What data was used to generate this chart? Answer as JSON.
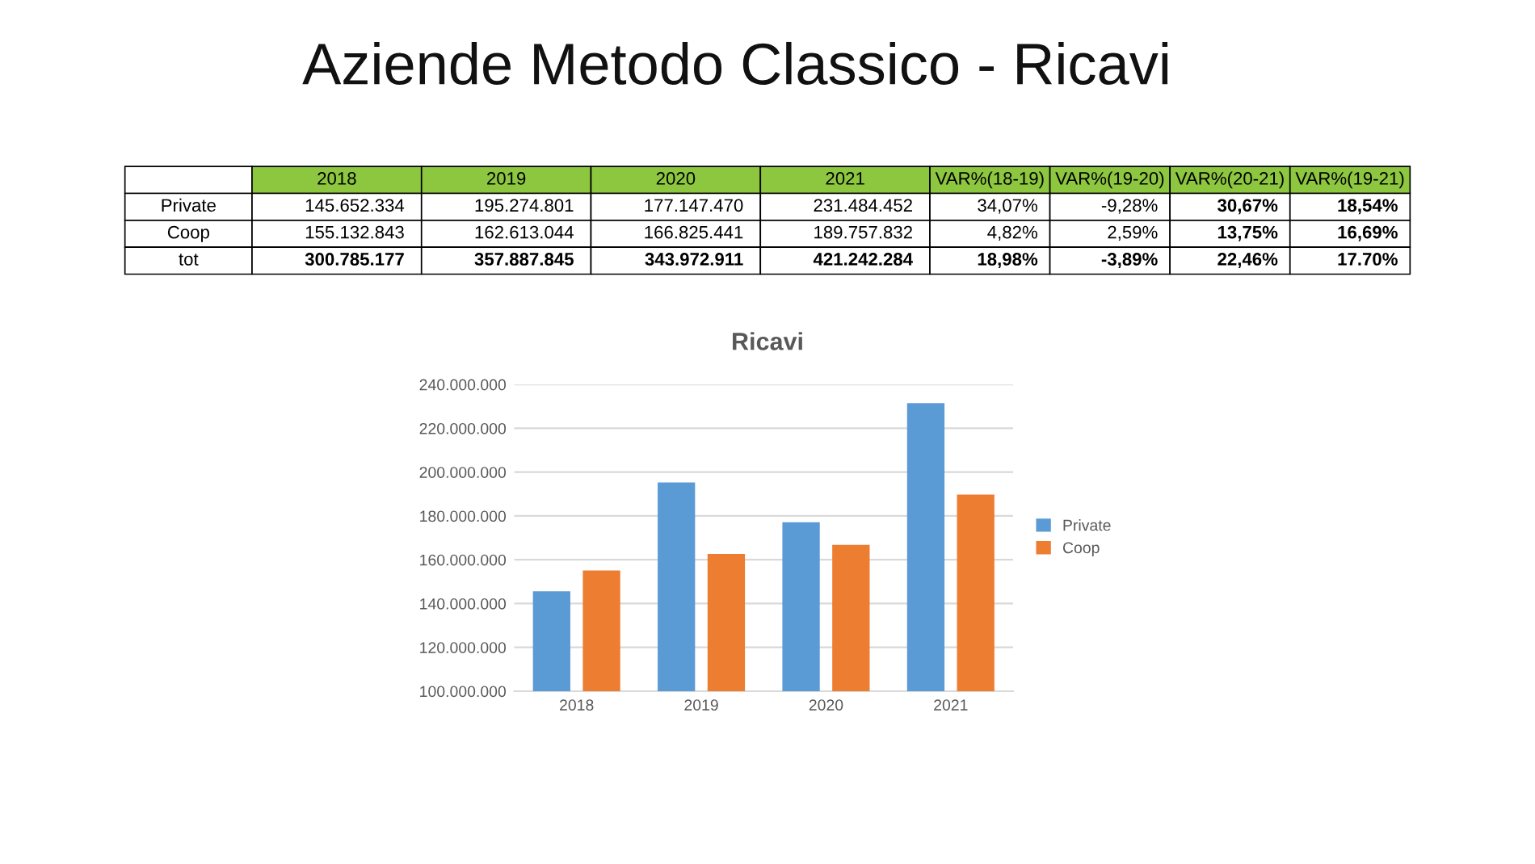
{
  "chart_data": {
    "type": "bar",
    "title": "Aziende Metodo Classico - Ricavi",
    "subtitle": "Ricavi",
    "categories": [
      "2018",
      "2019",
      "2020",
      "2021"
    ],
    "series": [
      {
        "name": "Private",
        "color": "#5b9bd5",
        "values": [
          145652334,
          195274801,
          177147470,
          231484452
        ]
      },
      {
        "name": "Coop",
        "color": "#ed7d31",
        "values": [
          155132843,
          162613044,
          166825441,
          189757832
        ]
      }
    ],
    "annotations": [
      "VAR%(18-19)",
      "VAR%(19-20)",
      "VAR%(20-21)",
      "VAR%(19-21)",
      "tot",
      "34,07%",
      "-9,28%",
      "30,67%",
      "18,54%",
      "4,82%",
      "2,59%",
      "13,75%",
      "16,69%",
      "300.785.177",
      "357.887.845",
      "343.972.911",
      "421.242.284",
      "18,98%",
      "-3,89%",
      "22,46%",
      "17.70%",
      "145.652.334",
      "195.274.801",
      "177.147.470",
      "231.484.452",
      "155.132.843",
      "162.613.044",
      "166.825.441",
      "189.757.832"
    ],
    "ylim": [
      100000000,
      240000000
    ],
    "yticks": [
      {
        "value": 100000000,
        "label": "100.000.000"
      },
      {
        "value": 120000000,
        "label": "120.000.000"
      },
      {
        "value": 140000000,
        "label": "140.000.000"
      },
      {
        "value": 160000000,
        "label": "160.000.000"
      },
      {
        "value": 180000000,
        "label": "180.000.000"
      },
      {
        "value": 200000000,
        "label": "200.000.000"
      },
      {
        "value": 220000000,
        "label": "220.000.000"
      },
      {
        "value": 240000000,
        "label": "240.000.000"
      }
    ],
    "grid": "y",
    "legend": "right"
  }
}
